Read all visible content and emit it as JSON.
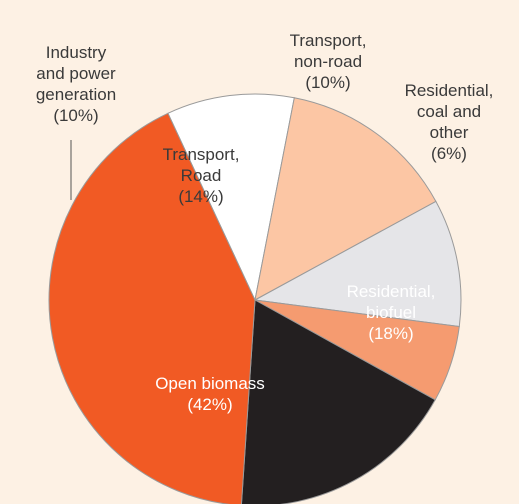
{
  "chart_data": {
    "type": "pie",
    "start_angle_deg": 245,
    "direction": "clockwise",
    "slices": [
      {
        "lines": [
          "Industry",
          "and power",
          "generation",
          "(10%)"
        ],
        "value": 10,
        "color": "#ffffff"
      },
      {
        "lines": [
          "Transport,",
          "Road",
          "(14%)"
        ],
        "value": 14,
        "color": "#fcc6a4"
      },
      {
        "lines": [
          "Transport,",
          "non-road",
          "(10%)"
        ],
        "value": 10,
        "color": "#e5e5e8"
      },
      {
        "lines": [
          "Residential,",
          "coal and",
          "other",
          "(6%)"
        ],
        "value": 6,
        "color": "#f59b70"
      },
      {
        "lines": [
          "Residential,",
          "biofuel",
          "(18%)"
        ],
        "value": 18,
        "color": "#231f20"
      },
      {
        "lines": [
          "Open biomass",
          "(42%)"
        ],
        "value": 42,
        "color": "#f15a24"
      }
    ],
    "title": "",
    "legend": "none"
  },
  "colors": {
    "background": "#fdf1e4",
    "slice_border": "#9a9a9a",
    "dark_text": "#3a3a3a",
    "light_text": "#ffffff"
  }
}
